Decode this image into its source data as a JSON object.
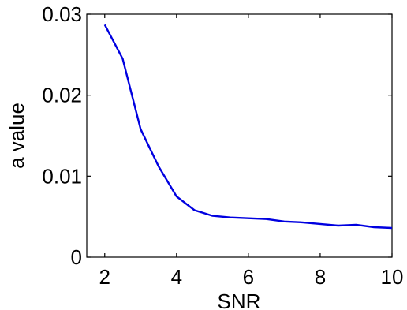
{
  "chart_data": {
    "type": "line",
    "title": "",
    "xlabel": "SNR",
    "ylabel": "a value",
    "xlim": [
      1.5,
      10
    ],
    "ylim": [
      0,
      0.03
    ],
    "xticks": [
      2,
      4,
      6,
      8,
      10
    ],
    "xtick_labels": [
      "2",
      "4",
      "6",
      "8",
      "10"
    ],
    "yticks": [
      0,
      0.01,
      0.02,
      0.03
    ],
    "ytick_labels": [
      "0",
      "0.01",
      "0.02",
      "0.03"
    ],
    "grid": false,
    "series": [
      {
        "color": "#0000e0",
        "x": [
          2,
          2.5,
          3,
          3.5,
          4,
          4.5,
          5,
          5.5,
          6,
          6.5,
          7,
          7.5,
          8,
          8.5,
          9,
          9.5,
          10
        ],
        "y": [
          0.0287,
          0.0245,
          0.0158,
          0.0112,
          0.0075,
          0.0058,
          0.0051,
          0.0049,
          0.0048,
          0.0047,
          0.0044,
          0.0043,
          0.0041,
          0.0039,
          0.004,
          0.0037,
          0.0036
        ]
      }
    ]
  }
}
